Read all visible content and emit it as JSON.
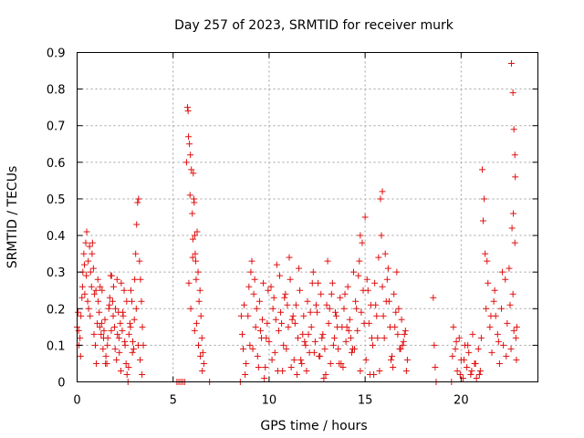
{
  "chart_data": {
    "type": "scatter",
    "title": "Day 257 of 2023, SRMTID for receiver murk",
    "xlabel": "GPS time / hours",
    "ylabel": "SRMTID / TECUs",
    "xlim": [
      0,
      24
    ],
    "ylim": [
      0,
      0.9
    ],
    "xticks": [
      0,
      5,
      10,
      15,
      20
    ],
    "xtick_labels": [
      "0",
      "5",
      "10",
      "15",
      "20"
    ],
    "yticks": [
      0,
      0.1,
      0.2,
      0.3,
      0.4,
      0.5,
      0.6,
      0.7,
      0.8,
      0.9
    ],
    "ytick_labels": [
      "0",
      "0.1",
      "0.2",
      "0.3",
      "0.4",
      "0.5",
      "0.6",
      "0.7",
      "0.8",
      "0.9"
    ],
    "grid": true,
    "marker": "plus",
    "color": "#e01010",
    "series": [
      {
        "name": "SRMTID",
        "x": [
          0.0,
          0.05,
          0.1,
          0.15,
          0.2,
          0.25,
          0.3,
          0.35,
          0.4,
          0.45,
          0.5,
          0.55,
          0.6,
          0.65,
          0.7,
          0.75,
          0.8,
          0.85,
          0.9,
          0.95,
          1.0,
          1.05,
          1.1,
          1.15,
          1.2,
          1.25,
          1.3,
          1.35,
          1.4,
          1.45,
          1.5,
          1.55,
          1.6,
          1.65,
          1.7,
          1.75,
          1.8,
          1.85,
          1.9,
          1.95,
          2.0,
          2.05,
          2.1,
          2.15,
          2.2,
          2.25,
          2.3,
          2.35,
          2.4,
          2.45,
          2.5,
          2.55,
          2.6,
          2.65,
          2.7,
          2.75,
          2.8,
          2.85,
          2.9,
          2.95,
          3.0,
          3.05,
          3.1,
          3.15,
          3.2,
          3.25,
          3.3,
          3.35,
          3.4,
          3.45,
          0.08,
          0.18,
          0.28,
          0.38,
          0.48,
          0.58,
          0.68,
          0.78,
          0.88,
          0.98,
          1.08,
          1.18,
          1.28,
          1.38,
          1.48,
          1.58,
          1.68,
          1.78,
          1.88,
          1.98,
          2.08,
          2.18,
          2.28,
          2.38,
          2.48,
          2.58,
          2.68,
          2.78,
          2.88,
          2.98,
          3.08,
          3.18,
          3.28,
          3.38,
          5.2,
          5.3,
          5.4,
          5.5,
          5.6,
          5.7,
          5.75,
          5.78,
          5.8,
          5.85,
          5.88,
          5.9,
          5.95,
          6.0,
          6.03,
          6.05,
          6.08,
          6.1,
          6.13,
          6.15,
          6.18,
          6.2,
          6.25,
          6.3,
          6.35,
          6.4,
          6.45,
          6.5,
          6.55,
          6.6,
          6.9,
          5.82,
          5.92,
          6.02,
          6.12,
          6.22,
          6.32,
          6.42,
          6.52,
          8.5,
          8.6,
          8.7,
          8.8,
          8.9,
          9.0,
          9.1,
          9.2,
          9.3,
          9.4,
          9.5,
          9.6,
          9.7,
          9.8,
          9.9,
          10.0,
          10.1,
          10.2,
          10.3,
          10.4,
          10.5,
          10.6,
          10.7,
          10.8,
          10.9,
          11.0,
          11.1,
          11.2,
          11.3,
          11.4,
          11.5,
          11.6,
          11.7,
          11.8,
          11.9,
          12.0,
          12.1,
          12.2,
          12.3,
          12.4,
          12.5,
          12.6,
          12.7,
          12.8,
          12.9,
          13.0,
          13.1,
          13.2,
          13.3,
          13.4,
          13.5,
          13.6,
          13.7,
          13.8,
          13.9,
          14.0,
          14.1,
          14.2,
          14.3,
          14.4,
          14.5,
          14.6,
          14.7,
          14.8,
          14.9,
          15.0,
          15.1,
          15.2,
          15.3,
          15.4,
          15.5,
          15.6,
          15.7,
          15.8,
          15.9,
          16.0,
          16.1,
          16.2,
          16.3,
          16.4,
          16.5,
          16.6,
          16.7,
          16.8,
          16.9,
          17.0,
          17.1,
          17.2,
          8.55,
          8.75,
          8.95,
          9.15,
          9.35,
          9.55,
          9.75,
          9.95,
          10.15,
          10.35,
          10.55,
          10.75,
          10.95,
          11.15,
          11.35,
          11.55,
          11.75,
          11.95,
          12.15,
          12.35,
          12.55,
          12.75,
          12.95,
          13.15,
          13.35,
          13.55,
          13.75,
          13.95,
          14.15,
          14.35,
          14.55,
          14.75,
          14.95,
          15.15,
          15.35,
          15.55,
          15.75,
          15.95,
          16.15,
          16.35,
          16.55,
          16.75,
          16.95,
          17.15,
          8.65,
          9.05,
          9.45,
          9.85,
          10.25,
          10.65,
          11.05,
          11.45,
          11.85,
          12.25,
          12.65,
          13.05,
          13.45,
          13.85,
          14.25,
          14.65,
          14.85,
          15.05,
          15.45,
          15.85,
          16.05,
          16.25,
          16.65,
          17.05,
          9.25,
          9.65,
          10.45,
          10.85,
          11.25,
          11.65,
          12.05,
          12.45,
          12.85,
          13.25,
          13.65,
          14.05,
          14.45,
          14.75,
          15.25,
          15.65,
          15.9,
          16.45,
          16.85,
          18.55,
          18.6,
          18.65,
          18.7,
          19.5,
          19.6,
          19.7,
          19.8,
          19.9,
          20.0,
          20.1,
          20.2,
          20.3,
          20.4,
          20.5,
          20.6,
          20.7,
          20.8,
          20.9,
          21.0,
          19.55,
          19.75,
          19.95,
          20.15,
          20.35,
          20.55,
          20.75,
          20.95,
          21.05,
          21.1,
          21.15,
          21.2,
          21.25,
          21.3,
          21.4,
          21.5,
          21.6,
          21.7,
          21.8,
          21.9,
          22.0,
          22.1,
          22.2,
          22.3,
          22.4,
          22.5,
          22.6,
          22.7,
          22.8,
          22.85,
          22.88,
          22.9,
          21.35,
          21.55,
          21.75,
          21.95,
          22.15,
          22.35,
          22.55,
          22.75,
          22.62,
          22.7,
          22.75,
          22.8,
          22.82,
          22.72,
          22.65
        ],
        "y": [
          0.15,
          0.19,
          0.1,
          0.12,
          0.18,
          0.23,
          0.3,
          0.35,
          0.24,
          0.38,
          0.41,
          0.22,
          0.2,
          0.37,
          0.3,
          0.26,
          0.38,
          0.31,
          0.24,
          0.1,
          0.05,
          0.16,
          0.22,
          0.19,
          0.26,
          0.13,
          0.25,
          0.09,
          0.14,
          0.17,
          0.07,
          0.05,
          0.12,
          0.2,
          0.23,
          0.29,
          0.29,
          0.22,
          0.26,
          0.15,
          0.2,
          0.06,
          0.13,
          0.19,
          0.08,
          0.16,
          0.27,
          0.14,
          0.18,
          0.25,
          0.1,
          0.05,
          0.02,
          0.0,
          0.13,
          0.16,
          0.25,
          0.22,
          0.11,
          0.09,
          0.28,
          0.35,
          0.43,
          0.49,
          0.5,
          0.33,
          0.28,
          0.22,
          0.15,
          0.1,
          0.14,
          0.07,
          0.26,
          0.32,
          0.29,
          0.33,
          0.18,
          0.35,
          0.13,
          0.25,
          0.28,
          0.15,
          0.16,
          0.12,
          0.05,
          0.1,
          0.21,
          0.14,
          0.18,
          0.09,
          0.28,
          0.12,
          0.03,
          0.19,
          0.11,
          0.22,
          0.04,
          0.15,
          0.08,
          0.17,
          0.2,
          0.1,
          0.06,
          0.02,
          0.0,
          0.0,
          0.0,
          0.0,
          0.0,
          0.6,
          0.75,
          0.74,
          0.67,
          0.65,
          0.51,
          0.62,
          0.58,
          0.46,
          0.39,
          0.57,
          0.5,
          0.49,
          0.4,
          0.35,
          0.33,
          0.28,
          0.41,
          0.3,
          0.22,
          0.25,
          0.18,
          0.12,
          0.08,
          0.05,
          0.0,
          0.27,
          0.2,
          0.34,
          0.14,
          0.16,
          0.1,
          0.07,
          0.03,
          0.0,
          0.13,
          0.21,
          0.05,
          0.18,
          0.1,
          0.33,
          0.24,
          0.15,
          0.07,
          0.22,
          0.12,
          0.27,
          0.04,
          0.16,
          0.11,
          0.26,
          0.2,
          0.08,
          0.32,
          0.14,
          0.19,
          0.03,
          0.23,
          0.09,
          0.15,
          0.28,
          0.17,
          0.06,
          0.21,
          0.12,
          0.25,
          0.05,
          0.18,
          0.1,
          0.22,
          0.08,
          0.15,
          0.3,
          0.11,
          0.19,
          0.07,
          0.24,
          0.13,
          0.09,
          0.21,
          0.16,
          0.05,
          0.27,
          0.12,
          0.18,
          0.09,
          0.23,
          0.15,
          0.2,
          0.11,
          0.26,
          0.17,
          0.08,
          0.3,
          0.22,
          0.14,
          0.33,
          0.19,
          0.25,
          0.45,
          0.28,
          0.16,
          0.21,
          0.1,
          0.27,
          0.18,
          0.34,
          0.5,
          0.26,
          0.12,
          0.22,
          0.31,
          0.15,
          0.07,
          0.24,
          0.19,
          0.13,
          0.09,
          0.17,
          0.11,
          0.14,
          0.06,
          0.18,
          0.02,
          0.26,
          0.09,
          0.2,
          0.14,
          0.01,
          0.25,
          0.06,
          0.17,
          0.29,
          0.1,
          0.21,
          0.04,
          0.16,
          0.31,
          0.13,
          0.03,
          0.19,
          0.08,
          0.27,
          0.12,
          0.02,
          0.2,
          0.1,
          0.15,
          0.05,
          0.24,
          0.14,
          0.09,
          0.2,
          0.03,
          0.16,
          0.25,
          0.12,
          0.21,
          0.03,
          0.18,
          0.28,
          0.06,
          0.15,
          0.2,
          0.1,
          0.03,
          0.09,
          0.3,
          0.04,
          0.12,
          0.23,
          0.16,
          0.34,
          0.02,
          0.11,
          0.27,
          0.07,
          0.33,
          0.19,
          0.04,
          0.12,
          0.29,
          0.38,
          0.06,
          0.02,
          0.4,
          0.35,
          0.22,
          0.3,
          0.13,
          0.28,
          0.17,
          0.03,
          0.24,
          0.18,
          0.06,
          0.13,
          0.21,
          0.01,
          0.24,
          0.05,
          0.15,
          0.09,
          0.4,
          0.02,
          0.12,
          0.52,
          0.04,
          0.09,
          0.23,
          0.1,
          0.04,
          0.0,
          0.0,
          0.15,
          0.09,
          0.03,
          0.12,
          0.06,
          0.01,
          0.1,
          0.04,
          0.08,
          0.02,
          0.13,
          0.05,
          0.01,
          0.09,
          0.03,
          0.07,
          0.11,
          0.02,
          0.06,
          0.1,
          0.03,
          0.05,
          0.02,
          0.12,
          0.58,
          0.44,
          0.5,
          0.35,
          0.2,
          0.27,
          0.15,
          0.08,
          0.22,
          0.18,
          0.13,
          0.05,
          0.2,
          0.1,
          0.28,
          0.16,
          0.31,
          0.09,
          0.24,
          0.38,
          0.12,
          0.06,
          0.15,
          0.33,
          0.18,
          0.25,
          0.11,
          0.3,
          0.07,
          0.21,
          0.14,
          0.87,
          0.79,
          0.69,
          0.62,
          0.56,
          0.46,
          0.42
        ]
      }
    ]
  }
}
